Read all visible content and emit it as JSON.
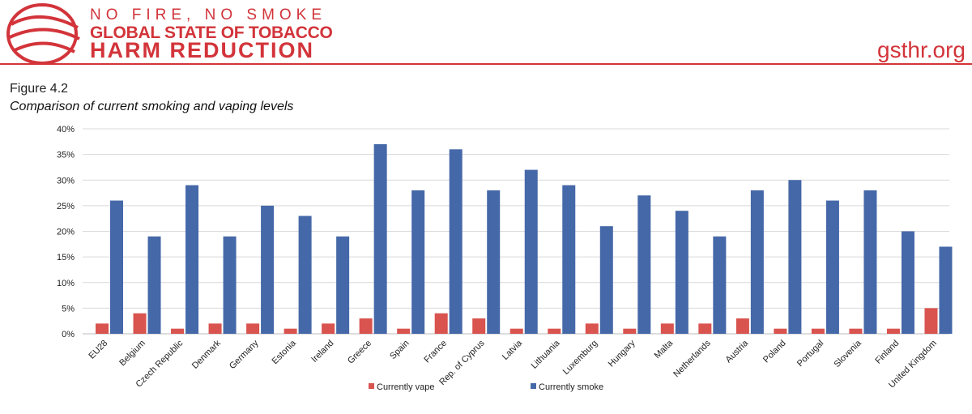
{
  "header": {
    "line1": "NO FIRE, NO SMOKE",
    "line2": "GLOBAL STATE OF TOBACCO",
    "line3": "HARM REDUCTION",
    "site": "gsthr.org"
  },
  "figure": {
    "label": "Figure 4.2",
    "title": "Comparison of current smoking and vaping levels"
  },
  "chart_data": {
    "type": "bar",
    "title": "Comparison of current smoking and vaping levels",
    "categories": [
      "EU28",
      "Belgium",
      "Czech Republic",
      "Denmark",
      "Germany",
      "Estonia",
      "Ireland",
      "Greece",
      "Spain",
      "France",
      "Rep. of Cyprus",
      "Latvia",
      "Lithuania",
      "Luxemburg",
      "Hungary",
      "Malta",
      "Netherlands",
      "Austria",
      "Poland",
      "Portugal",
      "Slovenia",
      "Finland",
      "United Kingdom"
    ],
    "series": [
      {
        "name": "Currently vape",
        "color": "#d9534f",
        "values": [
          2,
          4,
          1,
          2,
          2,
          1,
          2,
          3,
          1,
          4,
          3,
          1,
          1,
          2,
          1,
          2,
          2,
          3,
          1,
          1,
          1,
          1,
          5
        ]
      },
      {
        "name": "Currently smoke",
        "color": "#4568a8",
        "values": [
          26,
          19,
          29,
          19,
          25,
          23,
          19,
          37,
          28,
          36,
          28,
          32,
          29,
          21,
          27,
          24,
          19,
          28,
          30,
          26,
          28,
          20,
          17
        ]
      }
    ],
    "ylim": [
      0,
      40
    ],
    "yticks": [
      "0%",
      "5%",
      "10%",
      "15%",
      "20%",
      "25%",
      "30%",
      "35%",
      "40%"
    ],
    "grid": true,
    "legend": "bottom"
  }
}
